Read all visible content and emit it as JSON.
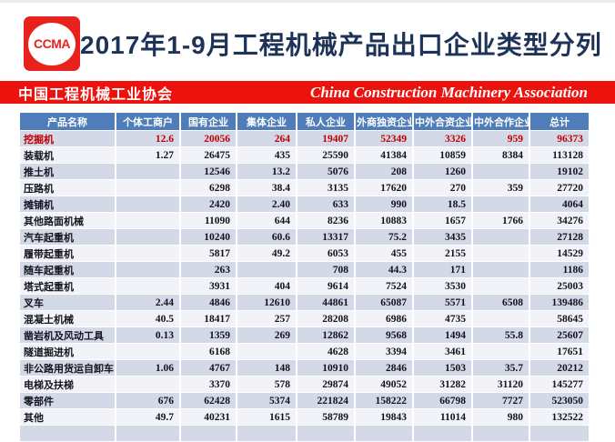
{
  "page": {
    "logo_text": "CCMA",
    "title": "2017年1-9月工程机械产品出口企业类型分列"
  },
  "banner": {
    "name_cn": "中国工程机械工业协会",
    "name_en": "China Construction Machinery Association"
  },
  "chart_data": {
    "type": "table",
    "title": "2017年1-9月工程机械产品出口企业类型分列",
    "columns": [
      "产品名称",
      "个体工商户",
      "国有企业",
      "集体企业",
      "私人企业",
      "外商独资企业",
      "中外合资企业",
      "中外合作企业",
      "总计"
    ],
    "rows": [
      {
        "name": "挖掘机",
        "highlight": true,
        "values": [
          "12.6",
          "20056",
          "264",
          "19407",
          "52349",
          "3326",
          "959",
          "96373"
        ]
      },
      {
        "name": "装载机",
        "highlight": false,
        "values": [
          "1.27",
          "26475",
          "435",
          "25590",
          "41384",
          "10859",
          "8384",
          "113128"
        ]
      },
      {
        "name": "推土机",
        "highlight": false,
        "values": [
          "",
          "12546",
          "13.2",
          "5076",
          "208",
          "1260",
          "",
          "19102"
        ]
      },
      {
        "name": "压路机",
        "highlight": false,
        "values": [
          "",
          "6298",
          "38.4",
          "3135",
          "17620",
          "270",
          "359",
          "27720"
        ]
      },
      {
        "name": "摊铺机",
        "highlight": false,
        "values": [
          "",
          "2420",
          "2.40",
          "633",
          "990",
          "18.5",
          "",
          "4064"
        ]
      },
      {
        "name": "其他路面机械",
        "highlight": false,
        "values": [
          "",
          "11090",
          "644",
          "8236",
          "10883",
          "1657",
          "1766",
          "34276"
        ]
      },
      {
        "name": "汽车起重机",
        "highlight": false,
        "values": [
          "",
          "10240",
          "60.6",
          "13317",
          "75.2",
          "3435",
          "",
          "27128"
        ]
      },
      {
        "name": "履带起重机",
        "highlight": false,
        "values": [
          "",
          "5817",
          "49.2",
          "6053",
          "455",
          "2155",
          "",
          "14529"
        ]
      },
      {
        "name": "随车起重机",
        "highlight": false,
        "values": [
          "",
          "263",
          "",
          "708",
          "44.3",
          "171",
          "",
          "1186"
        ]
      },
      {
        "name": "塔式起重机",
        "highlight": false,
        "values": [
          "",
          "3931",
          "404",
          "9614",
          "7524",
          "3530",
          "",
          "25003"
        ]
      },
      {
        "name": "叉车",
        "highlight": false,
        "values": [
          "2.44",
          "4846",
          "12610",
          "44861",
          "65087",
          "5571",
          "6508",
          "139486"
        ]
      },
      {
        "name": "混凝土机械",
        "highlight": false,
        "values": [
          "40.5",
          "18417",
          "257",
          "28208",
          "6986",
          "4735",
          "",
          "58645"
        ]
      },
      {
        "name": "凿岩机及风动工具",
        "highlight": false,
        "values": [
          "0.13",
          "1359",
          "269",
          "12862",
          "9568",
          "1494",
          "55.8",
          "25607"
        ]
      },
      {
        "name": "隧道掘进机",
        "highlight": false,
        "values": [
          "",
          "6168",
          "",
          "4628",
          "3394",
          "3461",
          "",
          "17651"
        ]
      },
      {
        "name": "非公路用货运自卸车",
        "highlight": false,
        "values": [
          "1.06",
          "4767",
          "148",
          "10910",
          "2846",
          "1503",
          "35.7",
          "20212"
        ]
      },
      {
        "name": "电梯及扶梯",
        "highlight": false,
        "values": [
          "",
          "3370",
          "578",
          "29874",
          "49052",
          "31282",
          "31120",
          "145277"
        ]
      },
      {
        "name": "零部件",
        "highlight": false,
        "values": [
          "676",
          "62428",
          "5374",
          "221824",
          "158222",
          "66798",
          "7727",
          "523050"
        ]
      },
      {
        "name": "其他",
        "highlight": false,
        "values": [
          "49.7",
          "40231",
          "1615",
          "58789",
          "19843",
          "11014",
          "980",
          "132522"
        ]
      }
    ],
    "legend_position": "none",
    "notes": "挖掘机 row rendered in red; alternating row shading; bottom row partially clipped"
  },
  "colors": {
    "header_blue": "#4e7dba",
    "row_tint": "#d4d9e8",
    "row_light": "#f2f3f8",
    "banner_red": "#ec130e",
    "logo_red": "#e8211d",
    "title_navy": "#1e3358",
    "highlight_red": "#c00000"
  }
}
